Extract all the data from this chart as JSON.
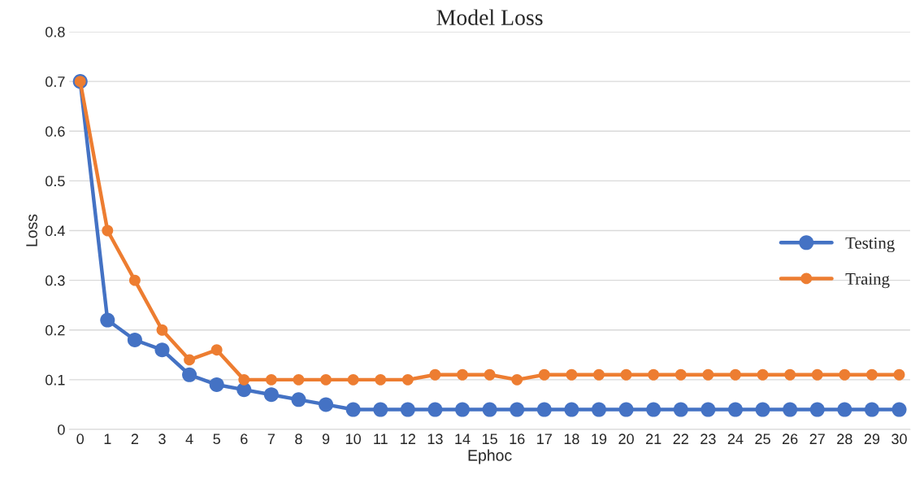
{
  "chart_data": {
    "type": "line",
    "title": "Model Loss",
    "xlabel": "Ephoc",
    "ylabel": "Loss",
    "categories": [
      "0",
      "1",
      "2",
      "3",
      "4",
      "5",
      "6",
      "7",
      "8",
      "9",
      "10",
      "11",
      "12",
      "13",
      "14",
      "15",
      "16",
      "17",
      "18",
      "19",
      "20",
      "21",
      "22",
      "23",
      "24",
      "25",
      "26",
      "27",
      "28",
      "29",
      "30"
    ],
    "series": [
      {
        "name": "Testing",
        "color": "#4472c4",
        "values": [
          0.7,
          0.22,
          0.18,
          0.16,
          0.11,
          0.09,
          0.08,
          0.07,
          0.06,
          0.05,
          0.04,
          0.04,
          0.04,
          0.04,
          0.04,
          0.04,
          0.04,
          0.04,
          0.04,
          0.04,
          0.04,
          0.04,
          0.04,
          0.04,
          0.04,
          0.04,
          0.04,
          0.04,
          0.04,
          0.04,
          0.04
        ]
      },
      {
        "name": "Traing",
        "color": "#ed7d31",
        "values": [
          0.7,
          0.4,
          0.3,
          0.2,
          0.14,
          0.16,
          0.1,
          0.1,
          0.1,
          0.1,
          0.1,
          0.1,
          0.1,
          0.11,
          0.11,
          0.11,
          0.1,
          0.11,
          0.11,
          0.11,
          0.11,
          0.11,
          0.11,
          0.11,
          0.11,
          0.11,
          0.11,
          0.11,
          0.11,
          0.11,
          0.11
        ]
      }
    ],
    "ylim": [
      0,
      0.8
    ],
    "yticks": [
      0,
      0.1,
      0.2,
      0.3,
      0.4,
      0.5,
      0.6,
      0.7,
      0.8
    ],
    "grid": "y",
    "legend": "right",
    "marker": "circle",
    "line_style": "solid"
  }
}
